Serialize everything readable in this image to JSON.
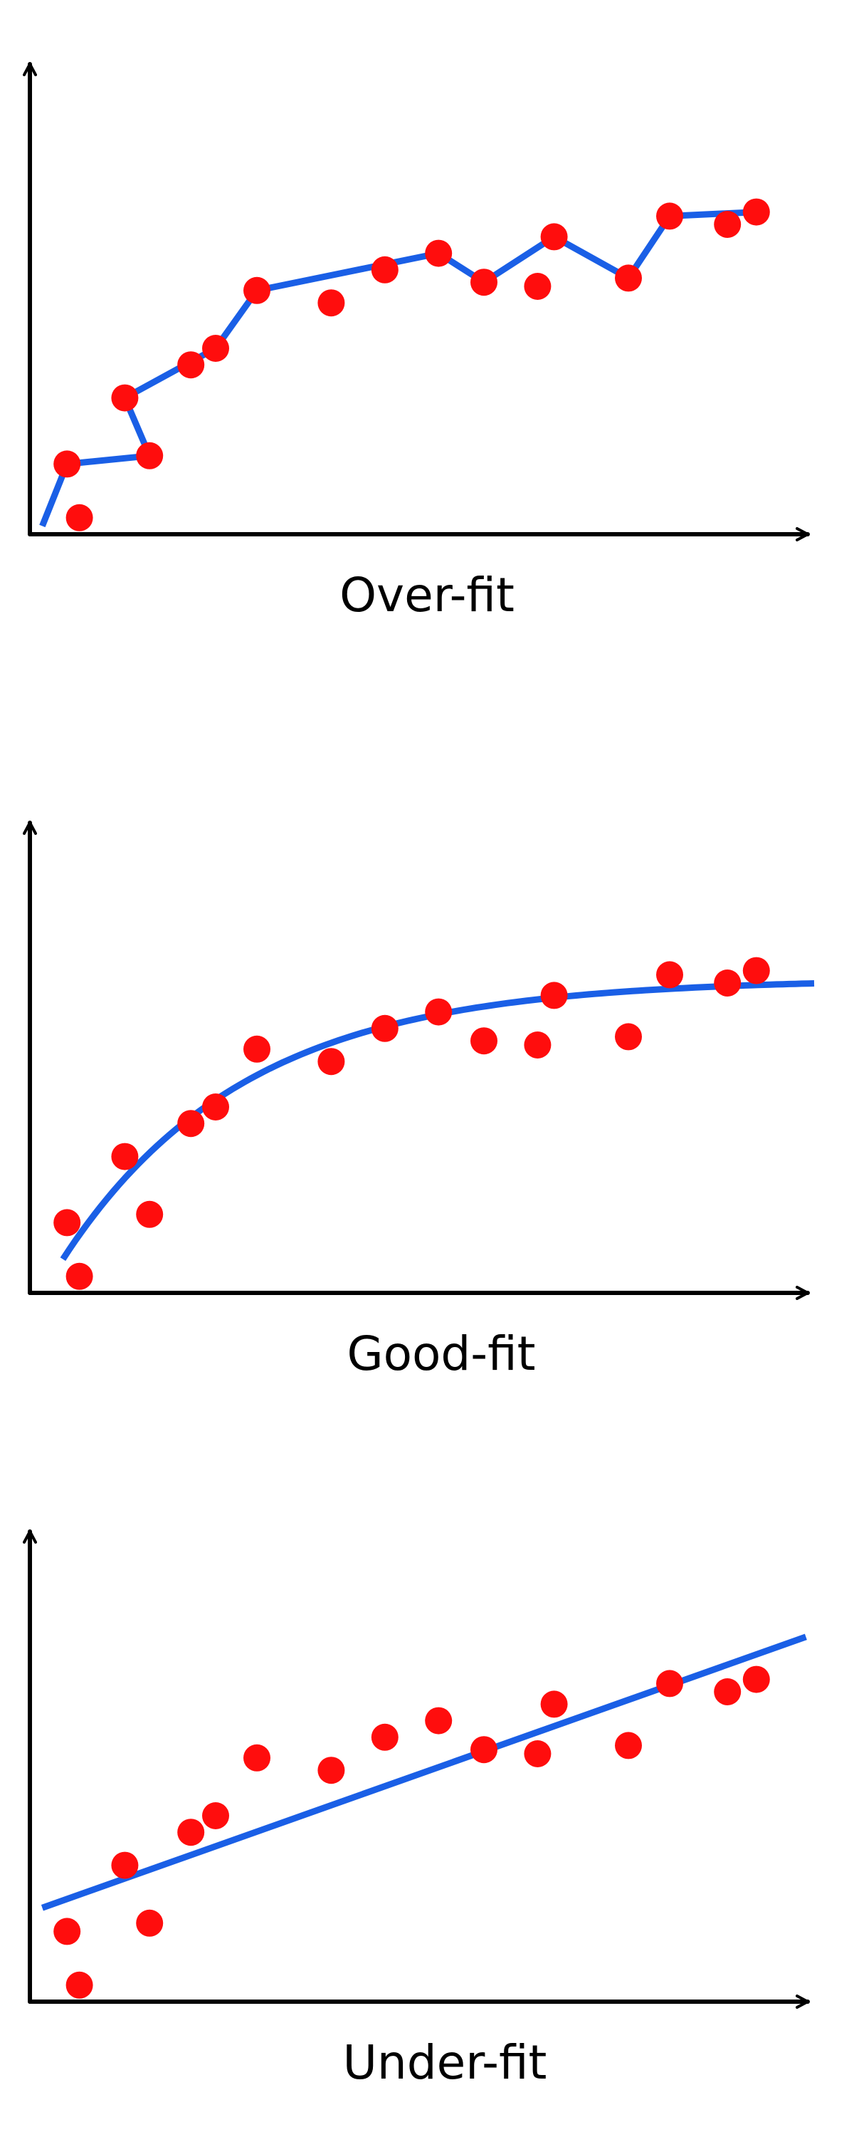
{
  "colors": {
    "point": "#ff0d0d",
    "fit_line": "#1a5fe6",
    "axis": "#000000"
  },
  "panels": [
    {
      "caption": "Over-fit",
      "fit": "interpolating",
      "points": [
        [
          1.2,
          0.4
        ],
        [
          0.9,
          1.7
        ],
        [
          2.9,
          1.9
        ],
        [
          2.3,
          3.3
        ],
        [
          4.5,
          4.5
        ],
        [
          3.9,
          4.1
        ],
        [
          5.5,
          5.9
        ],
        [
          7.3,
          5.6
        ],
        [
          8.6,
          6.4
        ],
        [
          9.9,
          6.8
        ],
        [
          11.0,
          6.1
        ],
        [
          12.3,
          6.0
        ],
        [
          12.7,
          7.2
        ],
        [
          14.5,
          6.2
        ],
        [
          15.5,
          7.7
        ],
        [
          16.9,
          7.5
        ],
        [
          17.6,
          7.8
        ]
      ],
      "line": [
        [
          0.3,
          0.2
        ],
        [
          0.9,
          1.7
        ],
        [
          2.9,
          1.9
        ],
        [
          2.3,
          3.3
        ],
        [
          4.5,
          4.5
        ],
        [
          5.5,
          5.9
        ],
        [
          9.9,
          6.8
        ],
        [
          11.0,
          6.1
        ],
        [
          12.7,
          7.2
        ],
        [
          14.5,
          6.2
        ],
        [
          15.5,
          7.7
        ],
        [
          17.6,
          7.8
        ]
      ]
    },
    {
      "caption": "Good-fit",
      "fit": "curve",
      "points": [
        [
          1.2,
          0.4
        ],
        [
          0.9,
          1.7
        ],
        [
          2.9,
          1.9
        ],
        [
          2.3,
          3.3
        ],
        [
          4.5,
          4.5
        ],
        [
          3.9,
          4.1
        ],
        [
          5.5,
          5.9
        ],
        [
          7.3,
          5.6
        ],
        [
          8.6,
          6.4
        ],
        [
          9.9,
          6.8
        ],
        [
          11.0,
          6.1
        ],
        [
          12.3,
          6.0
        ],
        [
          12.7,
          7.2
        ],
        [
          14.5,
          6.2
        ],
        [
          15.5,
          7.7
        ],
        [
          16.9,
          7.5
        ],
        [
          17.6,
          7.8
        ]
      ]
    },
    {
      "caption": "Under-fit",
      "fit": "linear",
      "points": [
        [
          1.2,
          0.4
        ],
        [
          0.9,
          1.7
        ],
        [
          2.9,
          1.9
        ],
        [
          2.3,
          3.3
        ],
        [
          4.5,
          4.5
        ],
        [
          3.9,
          4.1
        ],
        [
          5.5,
          5.9
        ],
        [
          7.3,
          5.6
        ],
        [
          8.6,
          6.4
        ],
        [
          9.9,
          6.8
        ],
        [
          11.0,
          6.1
        ],
        [
          12.3,
          6.0
        ],
        [
          12.7,
          7.2
        ],
        [
          14.5,
          6.2
        ],
        [
          15.5,
          7.7
        ],
        [
          16.9,
          7.5
        ],
        [
          17.6,
          7.8
        ]
      ]
    }
  ]
}
